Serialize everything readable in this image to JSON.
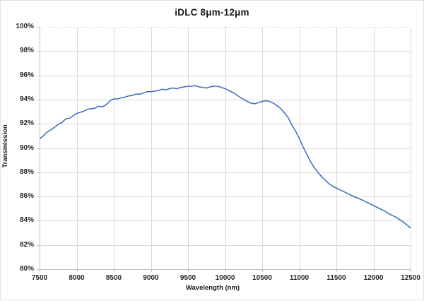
{
  "chart_data": {
    "type": "line",
    "title": "iDLC 8μm-12μm",
    "xlabel": "Wavelength (nm)",
    "ylabel": "Transmission",
    "xlim": [
      7500,
      12500
    ],
    "ylim": [
      80,
      100
    ],
    "grid": true,
    "legend": "none",
    "x_ticks": [
      7500,
      8000,
      8500,
      9000,
      9500,
      10000,
      10500,
      11000,
      11500,
      12000,
      12500
    ],
    "x_tick_labels": [
      "7500",
      "8000",
      "8500",
      "9000",
      "9500",
      "10000",
      "10500",
      "11000",
      "11500",
      "12000",
      "12500"
    ],
    "y_ticks": [
      100,
      98,
      96,
      94,
      92,
      90,
      88,
      86,
      84,
      82,
      80
    ],
    "y_tick_labels": [
      "100%",
      "98%",
      "96%",
      "94%",
      "92%",
      "90%",
      "88%",
      "86%",
      "84%",
      "82%",
      "80%"
    ],
    "series": [
      {
        "name": "Transmission",
        "color": "#4472C4",
        "x": [
          7500,
          7550,
          7600,
          7650,
          7700,
          7750,
          7800,
          7850,
          7900,
          7950,
          8000,
          8050,
          8100,
          8150,
          8200,
          8250,
          8300,
          8350,
          8400,
          8450,
          8500,
          8550,
          8600,
          8650,
          8700,
          8750,
          8800,
          8850,
          8900,
          8950,
          9000,
          9050,
          9100,
          9150,
          9200,
          9250,
          9300,
          9350,
          9400,
          9450,
          9500,
          9550,
          9600,
          9650,
          9700,
          9750,
          9800,
          9850,
          9900,
          9950,
          10000,
          10050,
          10100,
          10150,
          10200,
          10250,
          10300,
          10350,
          10400,
          10450,
          10500,
          10550,
          10600,
          10650,
          10700,
          10750,
          10800,
          10850,
          10900,
          10950,
          11000,
          11050,
          11100,
          11150,
          11200,
          11250,
          11300,
          11350,
          11400,
          11450,
          11500,
          11550,
          11600,
          11650,
          11700,
          11750,
          11800,
          11850,
          11900,
          11950,
          12000,
          12050,
          12100,
          12150,
          12200,
          12250,
          12300,
          12350,
          12400,
          12450,
          12500
        ],
        "values": [
          90.75,
          91.0,
          91.3,
          91.5,
          91.7,
          91.95,
          92.1,
          92.4,
          92.45,
          92.65,
          92.85,
          92.95,
          93.05,
          93.2,
          93.25,
          93.3,
          93.45,
          93.4,
          93.6,
          93.9,
          94.05,
          94.05,
          94.15,
          94.2,
          94.3,
          94.35,
          94.45,
          94.45,
          94.55,
          94.65,
          94.65,
          94.7,
          94.75,
          94.85,
          94.8,
          94.9,
          94.95,
          94.9,
          95.0,
          95.05,
          95.1,
          95.1,
          95.15,
          95.05,
          95.0,
          94.95,
          95.05,
          95.1,
          95.1,
          95.0,
          94.9,
          94.75,
          94.6,
          94.4,
          94.2,
          94.0,
          93.85,
          93.7,
          93.65,
          93.75,
          93.85,
          93.9,
          93.85,
          93.7,
          93.5,
          93.25,
          92.9,
          92.5,
          91.9,
          91.4,
          90.8,
          90.1,
          89.5,
          88.9,
          88.4,
          88.0,
          87.65,
          87.35,
          87.05,
          86.85,
          86.7,
          86.55,
          86.4,
          86.25,
          86.1,
          85.95,
          85.85,
          85.7,
          85.55,
          85.4,
          85.25,
          85.1,
          84.95,
          84.8,
          84.6,
          84.45,
          84.3,
          84.1,
          83.9,
          83.65,
          83.4
        ]
      }
    ],
    "colors": {
      "line": "#4472C4",
      "gridline": "#D9D9D9",
      "top_gridline": "#C8C8C8",
      "axis_line": "#BFBFBF",
      "tick_text": "#262626",
      "title_text": "#1A1A1A",
      "background": "#FFFFFF"
    }
  }
}
